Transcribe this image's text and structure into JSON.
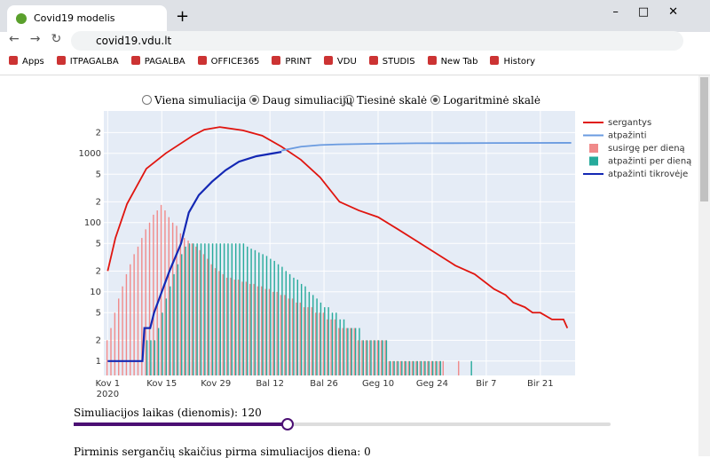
{
  "browser": {
    "tab_title": "Covid19 modelis",
    "url": "covid19.vdu.lt",
    "bookmarks": [
      "Apps",
      "ITPAGALBA",
      "PAGALBA",
      "OFFICE365",
      "PRINT",
      "VDU",
      "STUDIS",
      "New Tab",
      "History"
    ]
  },
  "controls": {
    "mode_options": [
      "Viena simuliacija",
      "Daug simuliacijų"
    ],
    "scale_options": [
      "Tiesinė skalė",
      "Logaritminė skalė"
    ],
    "slider_label": "Simuliacijos laikas (dienomis): 120",
    "next_label": "Pirminis sergančių skaičius pirma simuliacijos diena: 0"
  },
  "chart_data": {
    "type": "bar",
    "log_y": true,
    "grid": true,
    "legend": "right",
    "x": [
      0,
      1,
      2,
      3,
      4,
      5,
      6,
      7,
      8,
      9,
      10,
      11,
      12,
      13,
      14,
      15,
      16,
      17,
      18,
      19,
      20,
      21,
      22,
      23,
      24,
      25,
      26,
      27,
      28,
      29,
      30,
      31,
      32,
      33,
      34,
      35,
      36,
      37,
      38,
      39,
      40,
      41,
      42,
      43,
      44,
      45,
      46,
      47,
      48,
      49,
      50,
      51,
      52,
      53,
      54,
      55,
      56,
      57,
      58,
      59,
      60,
      61,
      62,
      63,
      64,
      65,
      66,
      67,
      68,
      69,
      70,
      71,
      72,
      73,
      74,
      75,
      76,
      77,
      78,
      79,
      80,
      81,
      82,
      83,
      84,
      85,
      86,
      87,
      88,
      89,
      90,
      91,
      92,
      93,
      94,
      95,
      96,
      97,
      98,
      99,
      100,
      101,
      102,
      103,
      104,
      105,
      106,
      107,
      108,
      109,
      110,
      111,
      112,
      113,
      114,
      115,
      116,
      117,
      118,
      119,
      120
    ],
    "xlim": [
      -1,
      121
    ],
    "xticks": [
      {
        "value": 0,
        "label": "Kov 1"
      },
      {
        "value": 14,
        "label": "Kov 15"
      },
      {
        "value": 28,
        "label": "Kov 29"
      },
      {
        "value": 42,
        "label": "Bal 12"
      },
      {
        "value": 56,
        "label": "Bal 26"
      },
      {
        "value": 70,
        "label": "Geg 10"
      },
      {
        "value": 84,
        "label": "Geg 24"
      },
      {
        "value": 98,
        "label": "Bir 7"
      },
      {
        "value": 112,
        "label": "Bir 21"
      }
    ],
    "x_sublabel": "2020",
    "ylim": [
      0.62,
      4100
    ],
    "yticks": [
      1,
      2,
      5,
      10,
      {
        "value": 20,
        "label": "2"
      },
      {
        "value": 50,
        "label": "5"
      },
      100,
      {
        "value": 200,
        "label": "2"
      },
      {
        "value": 500,
        "label": "5"
      },
      1000,
      {
        "value": 2000,
        "label": "2"
      }
    ],
    "series": [
      {
        "name": "sergantys",
        "mode": "line",
        "color": "#e0150f",
        "x": [
          0,
          2,
          5,
          10,
          15,
          22,
          25,
          29,
          35,
          40,
          45,
          50,
          55,
          60,
          65,
          70,
          75,
          80,
          85,
          90,
          95,
          100,
          103,
          105,
          108,
          110,
          112,
          115,
          118,
          119
        ],
        "values": [
          20,
          60,
          186,
          600,
          1000,
          1800,
          2200,
          2400,
          2150,
          1800,
          1250,
          810,
          450,
          200,
          150,
          120,
          81,
          54,
          36,
          24,
          18,
          11,
          9,
          7,
          6,
          5,
          5,
          4,
          4,
          3
        ]
      },
      {
        "name": "atpažinti",
        "mode": "line",
        "color": "#6a9be0",
        "x": [
          45,
          50,
          55,
          60,
          70,
          80,
          100,
          120
        ],
        "values": [
          1100,
          1250,
          1320,
          1350,
          1380,
          1400,
          1410,
          1420
        ]
      },
      {
        "name": "susirgę per dieną",
        "mode": "bar",
        "color": "#f08a8a",
        "values": [
          2,
          3,
          5,
          8,
          12,
          18,
          25,
          35,
          45,
          60,
          80,
          100,
          130,
          150,
          180,
          150,
          120,
          100,
          90,
          70,
          60,
          55,
          50,
          45,
          40,
          35,
          30,
          25,
          22,
          20,
          18,
          16,
          16,
          15,
          15,
          14,
          14,
          13,
          13,
          12,
          12,
          11,
          11,
          10,
          10,
          9,
          9,
          8,
          8,
          7,
          7,
          6,
          6,
          6,
          5,
          5,
          5,
          4,
          4,
          4,
          3,
          3,
          3,
          3,
          3,
          2,
          2,
          2,
          2,
          2,
          2,
          2,
          2,
          1,
          1,
          1,
          1,
          1,
          1,
          1,
          1,
          1,
          1,
          1,
          1,
          1,
          1,
          1,
          null,
          null,
          null,
          1,
          null,
          null,
          null,
          null,
          null,
          null,
          null,
          null,
          null,
          null,
          null,
          null,
          null,
          null,
          null,
          null,
          null,
          null,
          null,
          null,
          null,
          null,
          null,
          null,
          null,
          null,
          null,
          null,
          null
        ]
      },
      {
        "name": "atpažinti per dieną",
        "mode": "bar",
        "color": "#26aa9b",
        "values": [
          null,
          null,
          null,
          null,
          null,
          null,
          null,
          null,
          null,
          null,
          2,
          2,
          2,
          3,
          5,
          8,
          12,
          18,
          25,
          35,
          45,
          50,
          50,
          50,
          50,
          50,
          50,
          50,
          50,
          50,
          50,
          50,
          50,
          50,
          50,
          50,
          45,
          42,
          40,
          37,
          35,
          33,
          30,
          28,
          25,
          23,
          20,
          18,
          16,
          15,
          13,
          12,
          10,
          9,
          8,
          7,
          6,
          6,
          5,
          5,
          4,
          4,
          3,
          3,
          3,
          3,
          2,
          2,
          2,
          2,
          2,
          2,
          2,
          1,
          1,
          1,
          1,
          1,
          1,
          1,
          1,
          1,
          1,
          1,
          1,
          1,
          1,
          null,
          null,
          null,
          null,
          null,
          null,
          null,
          1,
          null,
          null,
          null,
          null,
          null,
          null,
          null,
          null,
          null,
          null,
          null,
          null,
          null,
          null,
          null,
          null,
          null,
          null,
          null,
          null,
          null,
          null,
          null,
          null,
          null,
          null
        ]
      },
      {
        "name": "atpažinti tikrovėje",
        "mode": "line",
        "color": "#1428b4",
        "x": [
          0,
          9,
          9.5,
          11,
          12,
          14,
          16,
          19,
          21,
          23.6,
          27,
          30.5,
          34,
          38.5,
          45
        ],
        "values": [
          1,
          1,
          3,
          3,
          5,
          10,
          20,
          50,
          140,
          250,
          390,
          570,
          760,
          910,
          1050
        ]
      }
    ]
  }
}
